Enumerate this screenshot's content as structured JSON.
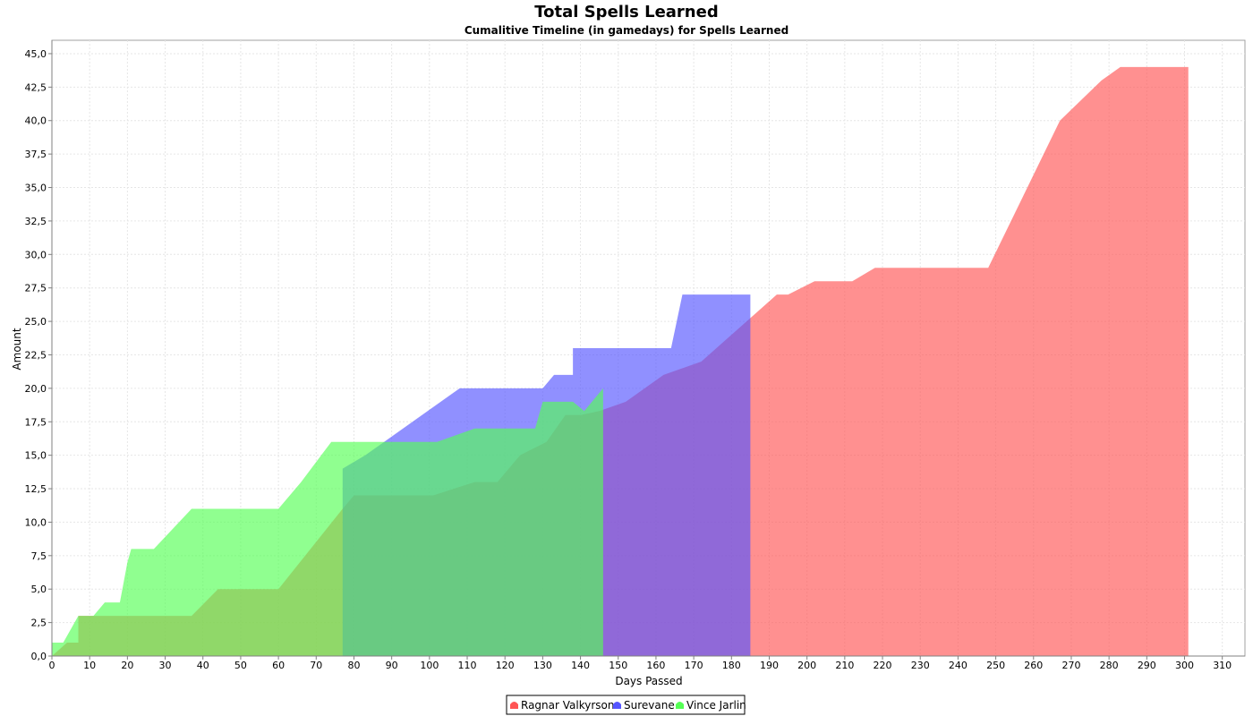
{
  "chart_data": {
    "type": "area",
    "title": "Total Spells Learned",
    "subtitle": "Cumalitive Timeline (in gamedays) for Spells Learned",
    "xlabel": "Days Passed",
    "ylabel": "Amount",
    "xlim": [
      0,
      316
    ],
    "ylim": [
      0,
      46
    ],
    "x_ticks": [
      0,
      10,
      20,
      30,
      40,
      50,
      60,
      70,
      80,
      90,
      100,
      110,
      120,
      130,
      140,
      150,
      160,
      170,
      180,
      190,
      200,
      210,
      220,
      230,
      240,
      250,
      260,
      270,
      280,
      290,
      300,
      310
    ],
    "x_tick_labels": [
      "0",
      "10",
      "20",
      "30",
      "40",
      "50",
      "60",
      "70",
      "80",
      "90",
      "100",
      "110",
      "120",
      "130",
      "140",
      "150",
      "160",
      "170",
      "180",
      "190",
      "200",
      "210",
      "220",
      "230",
      "240",
      "250",
      "260",
      "270",
      "280",
      "290",
      "300",
      "310"
    ],
    "y_ticks": [
      0,
      2.5,
      5,
      7.5,
      10,
      12.5,
      15,
      17.5,
      20,
      22.5,
      25,
      27.5,
      30,
      32.5,
      35,
      37.5,
      40,
      42.5,
      45
    ],
    "y_tick_labels": [
      "0,0",
      "2,5",
      "5,0",
      "7,5",
      "10,0",
      "12,5",
      "15,0",
      "17,5",
      "20,0",
      "22,5",
      "25,0",
      "27,5",
      "30,0",
      "32,5",
      "35,0",
      "37,5",
      "40,0",
      "42,5",
      "45,0"
    ],
    "grid": true,
    "legend_position": "bottom",
    "series": [
      {
        "name": "Ragnar Valkyrson",
        "color": "#ff5555",
        "x": [
          0,
          4,
          7,
          7,
          37,
          44,
          60,
          77,
          80,
          101,
          112,
          118,
          124,
          131,
          136,
          140,
          145,
          152,
          162,
          172,
          186,
          192,
          195,
          202,
          212,
          218,
          248,
          267,
          278,
          283,
          301
        ],
        "y": [
          0,
          1,
          1,
          3,
          3,
          5,
          5,
          11,
          12,
          12,
          13,
          13,
          15,
          16,
          18,
          18,
          18.3,
          19,
          21,
          22,
          25.5,
          27,
          27,
          28,
          28,
          29,
          29,
          40,
          43,
          44,
          44
        ]
      },
      {
        "name": "Surevane",
        "color": "#5555ff",
        "x": [
          77,
          77,
          83,
          88,
          108,
          130,
          133,
          138,
          138,
          164,
          167,
          185
        ],
        "y": [
          0,
          14,
          15,
          16,
          20,
          20,
          21,
          21,
          23,
          23,
          27,
          27
        ]
      },
      {
        "name": "Vince Jarlin",
        "color": "#55ff55",
        "x": [
          0,
          0,
          3,
          7,
          11,
          14,
          18,
          20,
          21,
          27,
          37,
          60,
          66,
          74,
          88,
          102,
          112,
          128,
          130,
          138,
          141,
          146
        ],
        "y": [
          0,
          1,
          1,
          3,
          3,
          4,
          4,
          7,
          8,
          8,
          11,
          11,
          13,
          16,
          16,
          16,
          17,
          17,
          19,
          19,
          18.3,
          20
        ]
      }
    ]
  }
}
